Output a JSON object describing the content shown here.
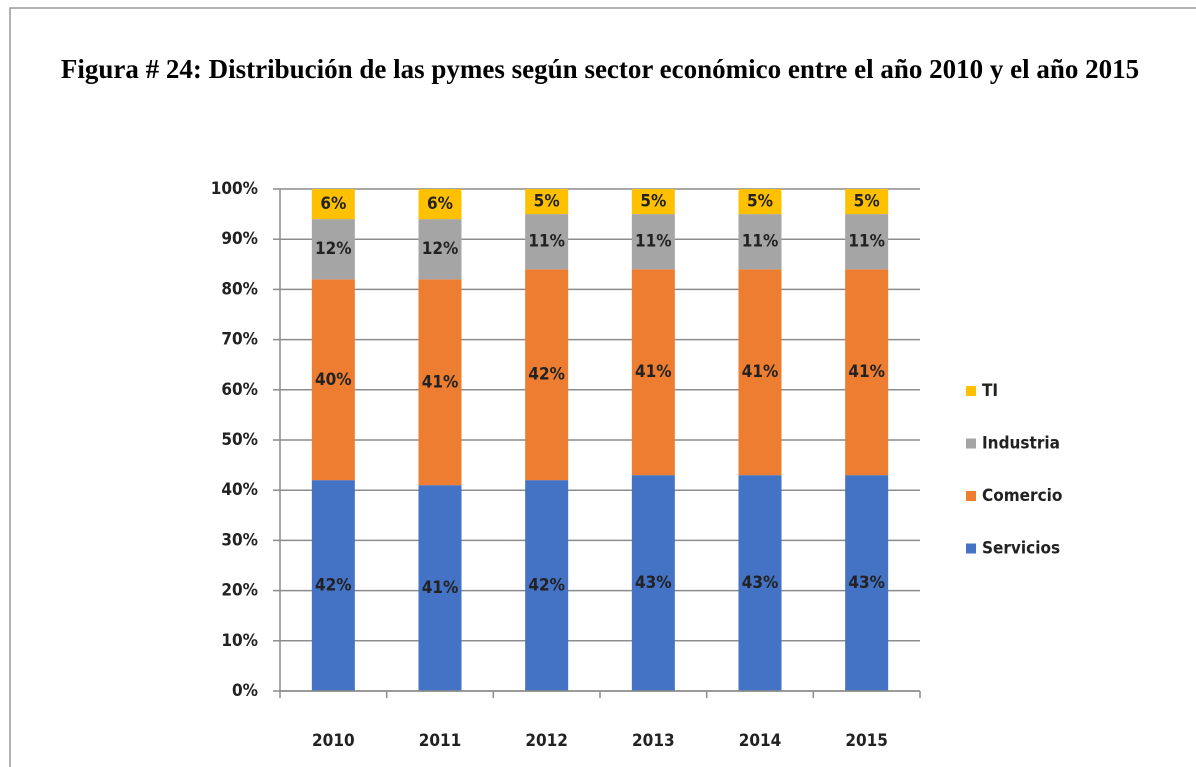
{
  "chart_data": {
    "type": "stacked_bar",
    "title": "Figura # 24: Distribución de las pymes según sector económico entre el año 2010 y el año 2015",
    "categories": [
      "2010",
      "2011",
      "2012",
      "2013",
      "2014",
      "2015"
    ],
    "series": [
      {
        "name": "Servicios",
        "color": "#4472c4",
        "values": [
          42,
          41,
          42,
          43,
          43,
          43
        ],
        "value_labels": [
          "42%",
          "41%",
          "42%",
          "43%",
          "43%",
          "43%"
        ]
      },
      {
        "name": "Comercio",
        "color": "#ed7d31",
        "values": [
          40,
          41,
          42,
          41,
          41,
          41
        ],
        "value_labels": [
          "40%",
          "41%",
          "42%",
          "41%",
          "41%",
          "41%"
        ]
      },
      {
        "name": "Industria",
        "color": "#a5a5a5",
        "values": [
          12,
          12,
          11,
          11,
          11,
          11
        ],
        "value_labels": [
          "12%",
          "12%",
          "11%",
          "11%",
          "11%",
          "11%"
        ]
      },
      {
        "name": "TI",
        "color": "#ffc000",
        "values": [
          6,
          6,
          5,
          5,
          5,
          5
        ],
        "value_labels": [
          "6%",
          "6%",
          "5%",
          "5%",
          "5%",
          "5%"
        ]
      }
    ],
    "ylim": [
      0,
      100
    ],
    "yticks": [
      {
        "value": 0,
        "label": "0%"
      },
      {
        "value": 10,
        "label": "10%"
      },
      {
        "value": 20,
        "label": "20%"
      },
      {
        "value": 30,
        "label": "30%"
      },
      {
        "value": 40,
        "label": "40%"
      },
      {
        "value": 50,
        "label": "50%"
      },
      {
        "value": 60,
        "label": "60%"
      },
      {
        "value": 70,
        "label": "70%"
      },
      {
        "value": 80,
        "label": "80%"
      },
      {
        "value": 90,
        "label": "90%"
      },
      {
        "value": 100,
        "label": "100%"
      }
    ],
    "grid": true,
    "legend": "right"
  }
}
